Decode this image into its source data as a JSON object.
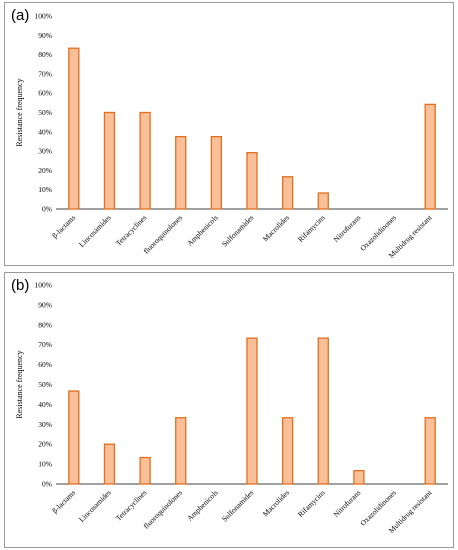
{
  "chart_data": [
    {
      "type": "bar",
      "panel_label": "(a)",
      "ylabel": "Resistance frequency",
      "ylim": [
        0,
        100
      ],
      "yticks": [
        "0%",
        "10%",
        "20%",
        "30%",
        "40%",
        "50%",
        "60%",
        "70%",
        "80%",
        "90%",
        "100%"
      ],
      "categories": [
        "β-lactams",
        "Lincosamides",
        "Tetracyclines",
        "fluoroquinolones",
        "Amphenicols",
        "Sulfonamides",
        "Macrolides",
        "Rifamycins",
        "Nitrofurans",
        "Oxazolidinones",
        "Multidrug resistant"
      ],
      "values": [
        83.3,
        50,
        50,
        37.5,
        37.5,
        29.2,
        16.7,
        8.3,
        0,
        0,
        54.2
      ],
      "colors": {
        "fill": "#f9bf98",
        "stroke": "#e26f1d"
      }
    },
    {
      "type": "bar",
      "panel_label": "(b)",
      "ylabel": "Resistance frequency",
      "ylim": [
        0,
        100
      ],
      "yticks": [
        "0%",
        "10%",
        "20%",
        "30%",
        "40%",
        "50%",
        "60%",
        "70%",
        "80%",
        "90%",
        "100%"
      ],
      "categories": [
        "β-lactams",
        "Lincosamides",
        "Tetracyclines",
        "fluoroquinolones",
        "Amphenicols",
        "Sulfonamides",
        "Macrolides",
        "Rifamycins",
        "Nitrofurans",
        "Oxazolidinones",
        "Multidrug resistant"
      ],
      "values": [
        46.7,
        20,
        13.3,
        33.3,
        0,
        73.3,
        33.3,
        73.3,
        6.7,
        0,
        33.3
      ],
      "colors": {
        "fill": "#f9bf98",
        "stroke": "#e26f1d"
      }
    }
  ]
}
